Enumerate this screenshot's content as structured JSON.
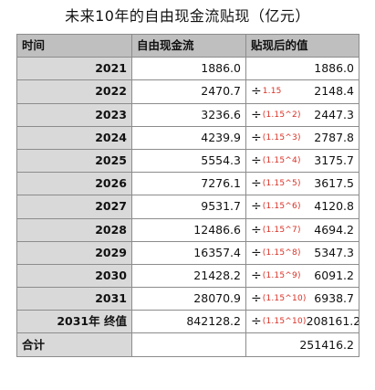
{
  "title": "未来10年的自由现金流贴现（亿元）",
  "headers": {
    "time": "时间",
    "fcf": "自由现金流",
    "pv": "贴现后的值"
  },
  "divide_symbol": "÷",
  "rows": [
    {
      "year": "2021",
      "fcf": "1886.0",
      "factor": "",
      "pv": "1886.0"
    },
    {
      "year": "2022",
      "fcf": "2470.7",
      "factor": "1.15",
      "pv": "2148.4"
    },
    {
      "year": "2023",
      "fcf": "3236.6",
      "factor": "(1.15^2)",
      "pv": "2447.3"
    },
    {
      "year": "2024",
      "fcf": "4239.9",
      "factor": "(1.15^3)",
      "pv": "2787.8"
    },
    {
      "year": "2025",
      "fcf": "5554.3",
      "factor": "(1.15^4)",
      "pv": "3175.7"
    },
    {
      "year": "2026",
      "fcf": "7276.1",
      "factor": "(1.15^5)",
      "pv": "3617.5"
    },
    {
      "year": "2027",
      "fcf": "9531.7",
      "factor": "(1.15^6)",
      "pv": "4120.8"
    },
    {
      "year": "2028",
      "fcf": "12486.6",
      "factor": "(1.15^7)",
      "pv": "4694.2"
    },
    {
      "year": "2029",
      "fcf": "16357.4",
      "factor": "(1.15^8)",
      "pv": "5347.3"
    },
    {
      "year": "2030",
      "fcf": "21428.2",
      "factor": "(1.15^9)",
      "pv": "6091.2"
    },
    {
      "year": "2031",
      "fcf": "28070.9",
      "factor": "(1.15^10)",
      "pv": "6938.7"
    },
    {
      "year": "2031年 终值",
      "fcf": "842128.2",
      "factor": "(1.15^10)",
      "pv": "208161.2"
    }
  ],
  "total": {
    "label": "合计",
    "fcf": "",
    "pv": "251416.2"
  },
  "colors": {
    "header_bg": "#bfbfbf",
    "label_bg": "#d9d9d9",
    "factor_text": "#d93025",
    "border": "#8c8c8c"
  }
}
